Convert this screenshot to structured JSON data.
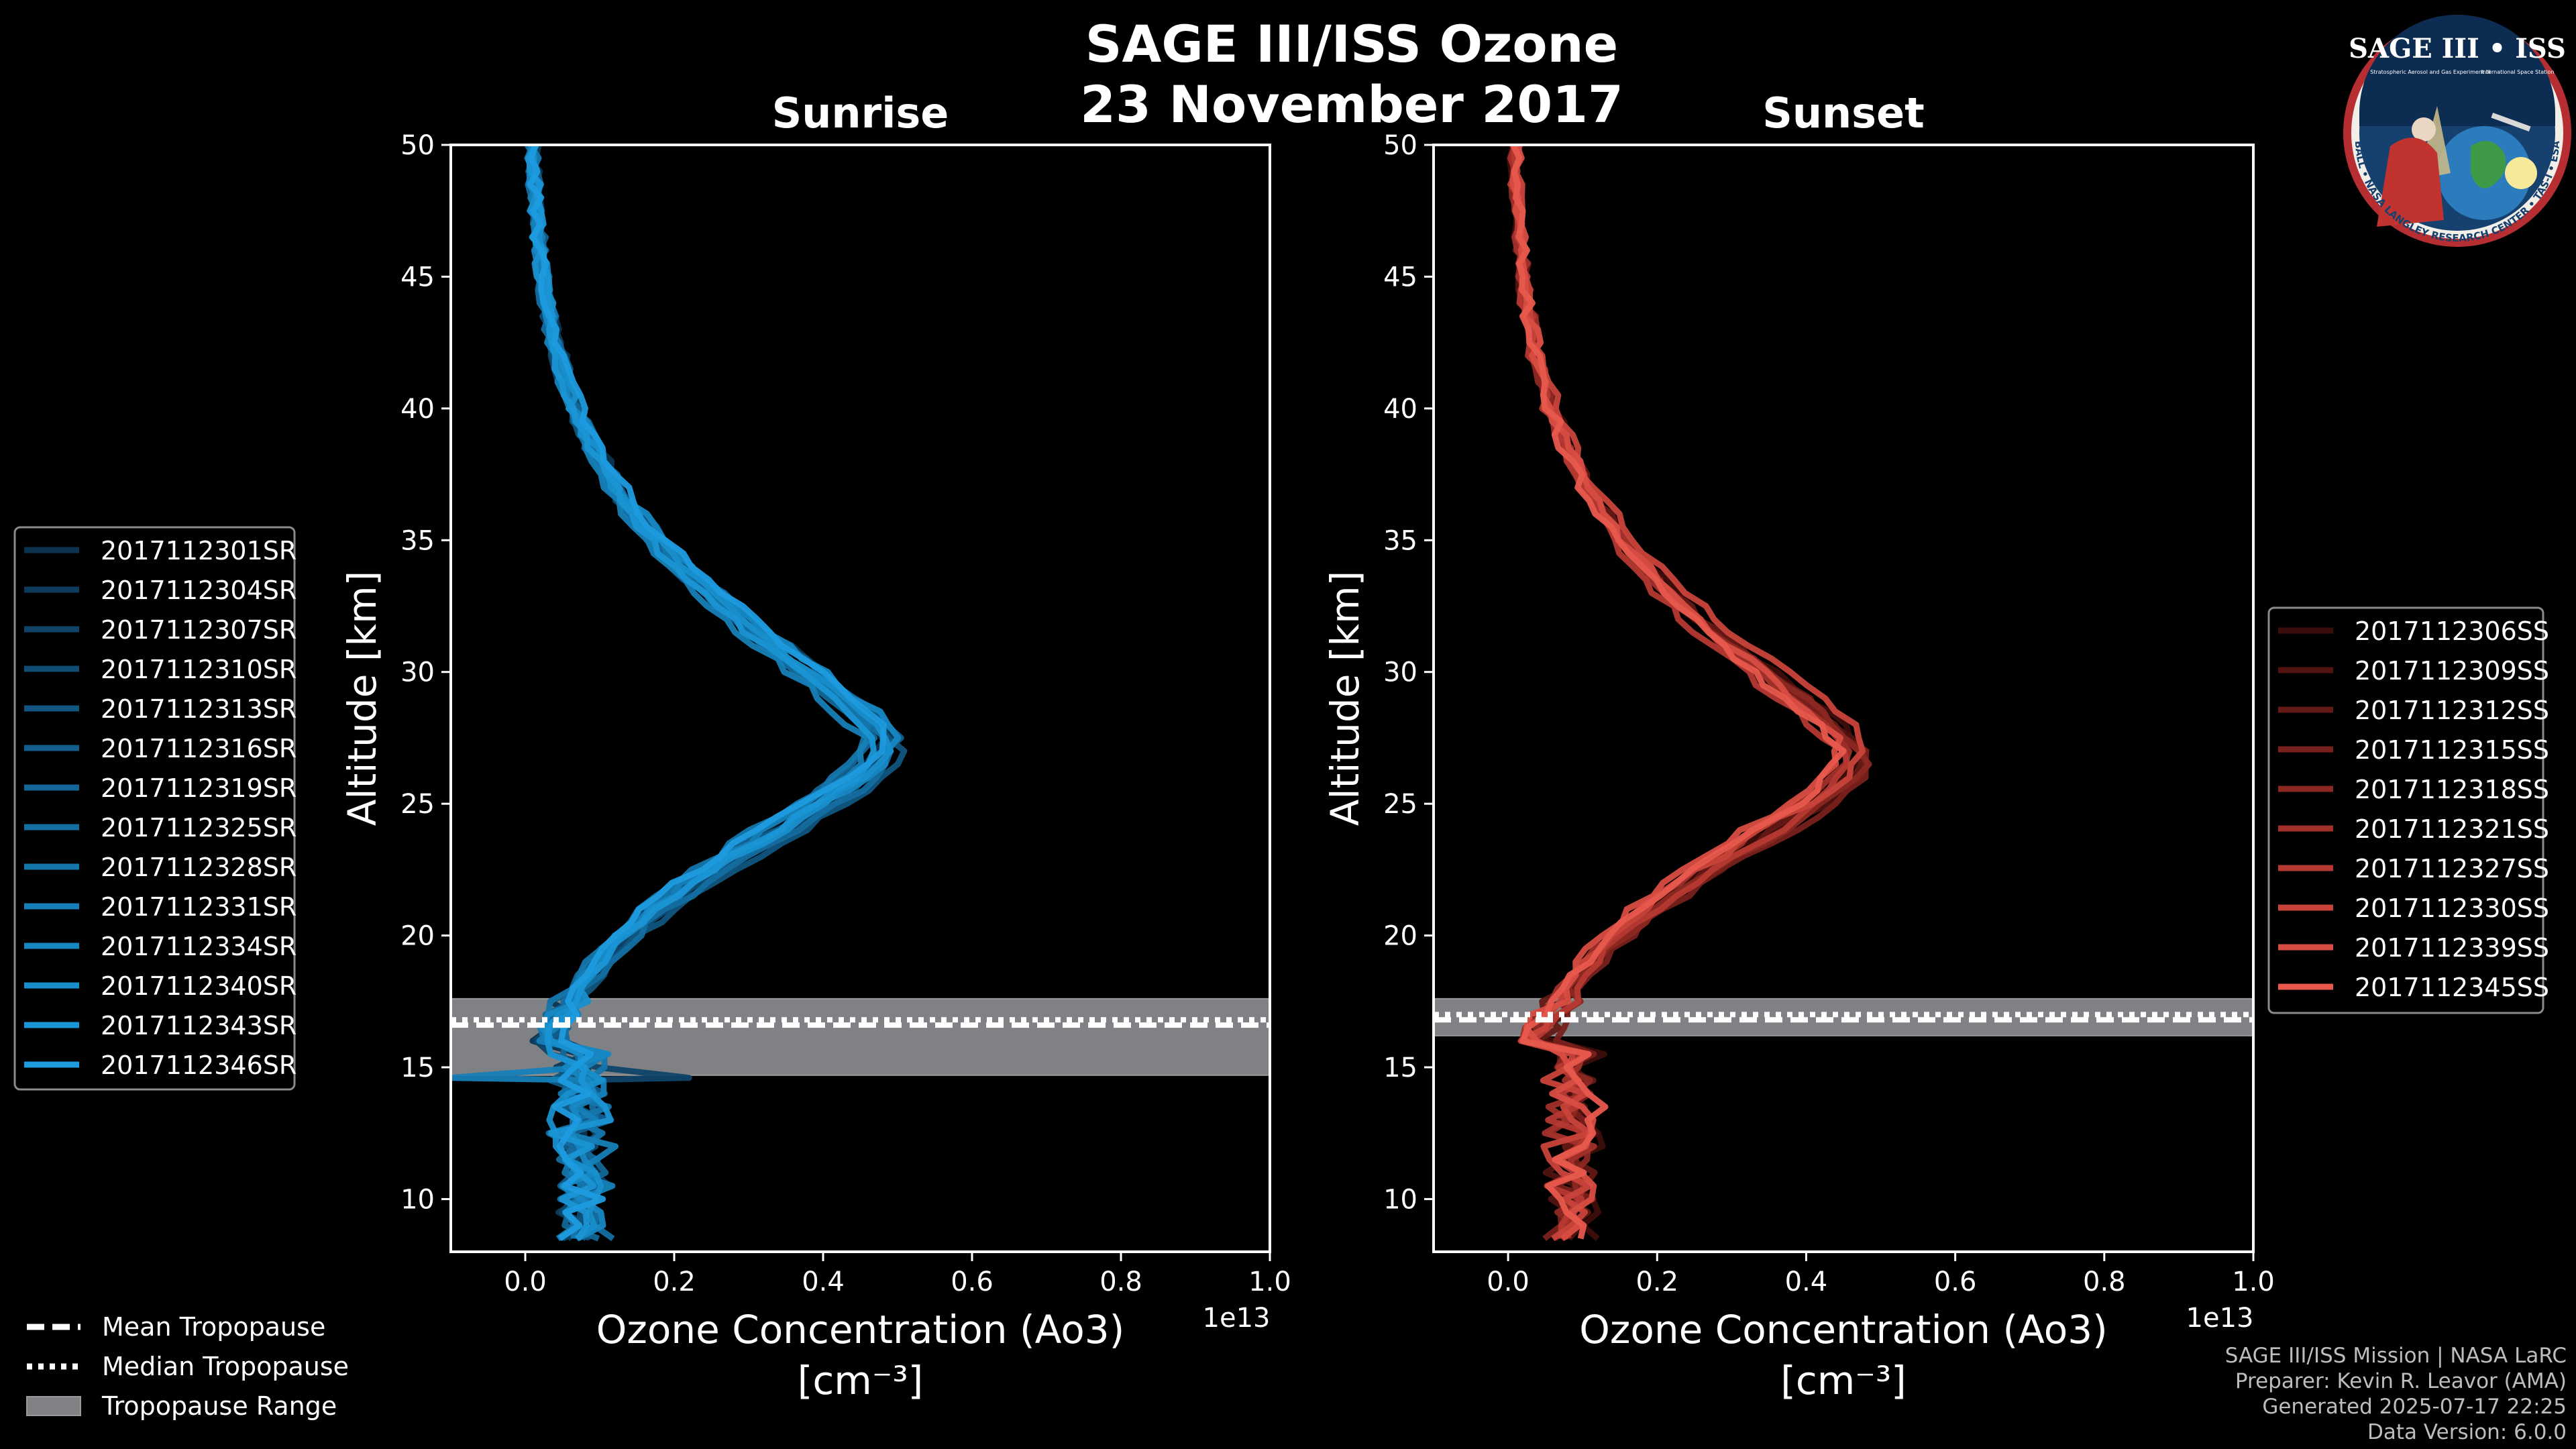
{
  "title_line1": "SAGE III/ISS Ozone",
  "title_line2": "23 November 2017",
  "logo": {
    "name": "SAGE III • ISS",
    "subtitle_left": "Stratospheric Aerosol and Gas Experiment III",
    "subtitle_right": "International Space Station",
    "ring_text": "BALL • NASA LANGLEY RESEARCH CENTER • TAS-I • ESA"
  },
  "footer": {
    "line1": "SAGE III/ISS Mission | NASA LaRC",
    "line2": "Preparer: Kevin R. Leavor (AMA)",
    "line3": "Generated 2025-07-17 22:25",
    "line4": "Data Version: 6.0.0"
  },
  "tropopause_legend": {
    "mean": "Mean Tropopause",
    "median": "Median Tropopause",
    "range": "Tropopause Range"
  },
  "colors": {
    "sunrise": "#1e96d8",
    "sunset": "#e4574b",
    "range_fill": "#7f8184",
    "axes": "#ffffff"
  },
  "chart_data": [
    {
      "type": "line",
      "title": "Sunrise",
      "xlabel": "Ozone Concentration (Ao3)",
      "xunit": "[cm⁻³]",
      "ylabel": "Altitude [km]",
      "xlim": [
        -0.1,
        1.0
      ],
      "ylim": [
        8,
        50
      ],
      "x_ticks": [
        "0.0",
        "0.2",
        "0.4",
        "0.6",
        "0.8",
        "1.0"
      ],
      "y_ticks": [
        "10",
        "15",
        "20",
        "25",
        "30",
        "35",
        "40",
        "45",
        "50"
      ],
      "x_offset_label": "1e13",
      "tropopause": {
        "mean": 16.6,
        "median": 16.8,
        "range": [
          14.7,
          17.6
        ]
      },
      "series": [
        {
          "name": "2017112301SR",
          "color": "#0b3350"
        },
        {
          "name": "2017112304SR",
          "color": "#0d3b5c"
        },
        {
          "name": "2017112307SR",
          "color": "#0f4468"
        },
        {
          "name": "2017112310SR",
          "color": "#104c74"
        },
        {
          "name": "2017112313SR",
          "color": "#115580"
        },
        {
          "name": "2017112316SR",
          "color": "#125d8b"
        },
        {
          "name": "2017112319SR",
          "color": "#136696"
        },
        {
          "name": "2017112325SR",
          "color": "#146ea1"
        },
        {
          "name": "2017112328SR",
          "color": "#1576ac"
        },
        {
          "name": "2017112331SR",
          "color": "#167fb7"
        },
        {
          "name": "2017112334SR",
          "color": "#1787c2"
        },
        {
          "name": "2017112340SR",
          "color": "#188fcc"
        },
        {
          "name": "2017112343SR",
          "color": "#1a95d5"
        },
        {
          "name": "2017112346SR",
          "color": "#1e9bdf"
        }
      ]
    },
    {
      "type": "line",
      "title": "Sunset",
      "xlabel": "Ozone Concentration (Ao3)",
      "xunit": "[cm⁻³]",
      "ylabel": "Altitude [km]",
      "xlim": [
        -0.1,
        1.0
      ],
      "ylim": [
        8,
        50
      ],
      "x_ticks": [
        "0.0",
        "0.2",
        "0.4",
        "0.6",
        "0.8",
        "1.0"
      ],
      "y_ticks": [
        "10",
        "15",
        "20",
        "25",
        "30",
        "35",
        "40",
        "45",
        "50"
      ],
      "x_offset_label": "1e13",
      "tropopause": {
        "mean": 16.8,
        "median": 17.0,
        "range": [
          16.2,
          17.6
        ]
      },
      "series": [
        {
          "name": "2017112306SS",
          "color": "#3d0d0b"
        },
        {
          "name": "2017112309SS",
          "color": "#501310"
        },
        {
          "name": "2017112312SS",
          "color": "#631915"
        },
        {
          "name": "2017112315SS",
          "color": "#78201b"
        },
        {
          "name": "2017112318SS",
          "color": "#8c2822"
        },
        {
          "name": "2017112321SS",
          "color": "#a1302a"
        },
        {
          "name": "2017112327SS",
          "color": "#b53932"
        },
        {
          "name": "2017112330SS",
          "color": "#c8433a"
        },
        {
          "name": "2017112339SS",
          "color": "#d84d43"
        },
        {
          "name": "2017112345SS",
          "color": "#e8584d"
        }
      ]
    }
  ]
}
